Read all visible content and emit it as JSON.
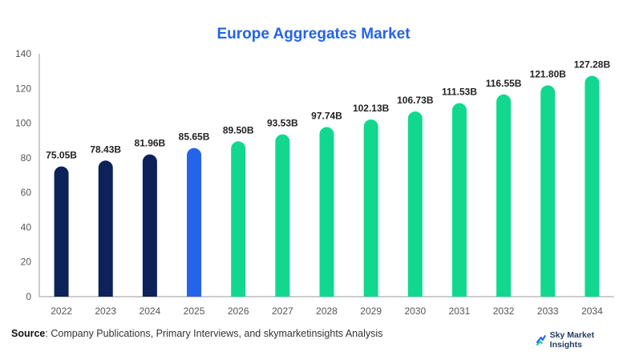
{
  "chart_data": {
    "type": "bar",
    "title": "Europe Aggregates Market",
    "xlabel": "",
    "ylabel": "",
    "ylim": [
      0,
      140
    ],
    "yticks": [
      0,
      20,
      40,
      60,
      80,
      100,
      120,
      140
    ],
    "grid": false,
    "categories": [
      "2022",
      "2023",
      "2024",
      "2025",
      "2026",
      "2027",
      "2028",
      "2029",
      "2030",
      "2031",
      "2032",
      "2033",
      "2034"
    ],
    "values": [
      75.05,
      78.43,
      81.96,
      85.65,
      89.5,
      93.53,
      97.74,
      102.13,
      106.73,
      111.53,
      116.55,
      121.8,
      127.28
    ],
    "data_labels": [
      "75.05B",
      "78.43B",
      "81.96B",
      "85.65B",
      "89.50B",
      "93.53B",
      "97.74B",
      "102.13B",
      "106.73B",
      "111.53B",
      "116.55B",
      "121.80B",
      "127.28B"
    ],
    "bar_colors": [
      "#0d2259",
      "#0d2259",
      "#0d2259",
      "#2563eb",
      "#12d88f",
      "#12d88f",
      "#12d88f",
      "#12d88f",
      "#12d88f",
      "#12d88f",
      "#12d88f",
      "#12d88f",
      "#12d88f"
    ]
  },
  "footer": {
    "source_label": "Source",
    "source_text": ": Company Publications, Primary Interviews, and skymarketinsights Analysis",
    "brand": "Sky Market Insights"
  },
  "colors": {
    "title": "#2563eb",
    "axis": "#999999",
    "tick_text": "#555555",
    "label_text": "#222222"
  }
}
